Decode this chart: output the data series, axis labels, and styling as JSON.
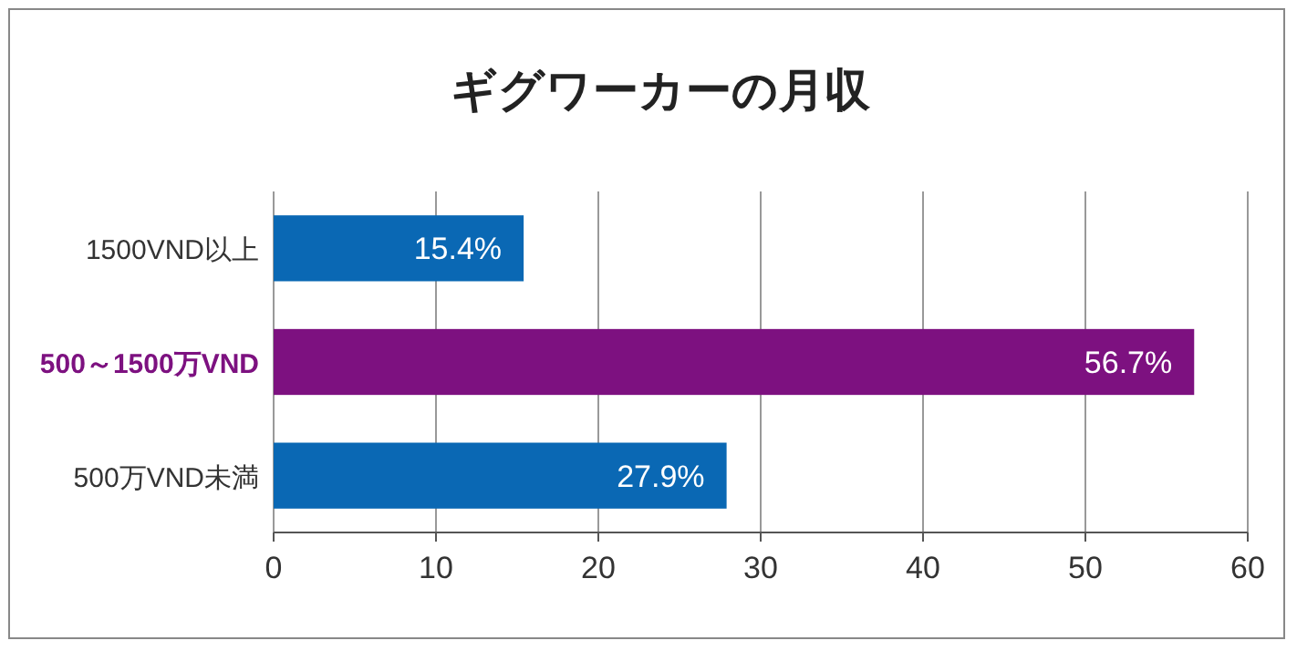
{
  "chart_data": {
    "type": "bar",
    "orientation": "horizontal",
    "title": "ギグワーカーの月収",
    "categories": [
      "1500VND以上",
      "500～1500万VND",
      "500万VND未満"
    ],
    "values": [
      15.4,
      56.7,
      27.9
    ],
    "value_labels": [
      "15.4%",
      "56.7%",
      "27.9%"
    ],
    "colors": [
      "#0a68b4",
      "#7d1180",
      "#0a68b4"
    ],
    "xlim": [
      0,
      60
    ],
    "xticks": [
      0,
      10,
      20,
      30,
      40,
      50,
      60
    ],
    "grid": "x"
  }
}
